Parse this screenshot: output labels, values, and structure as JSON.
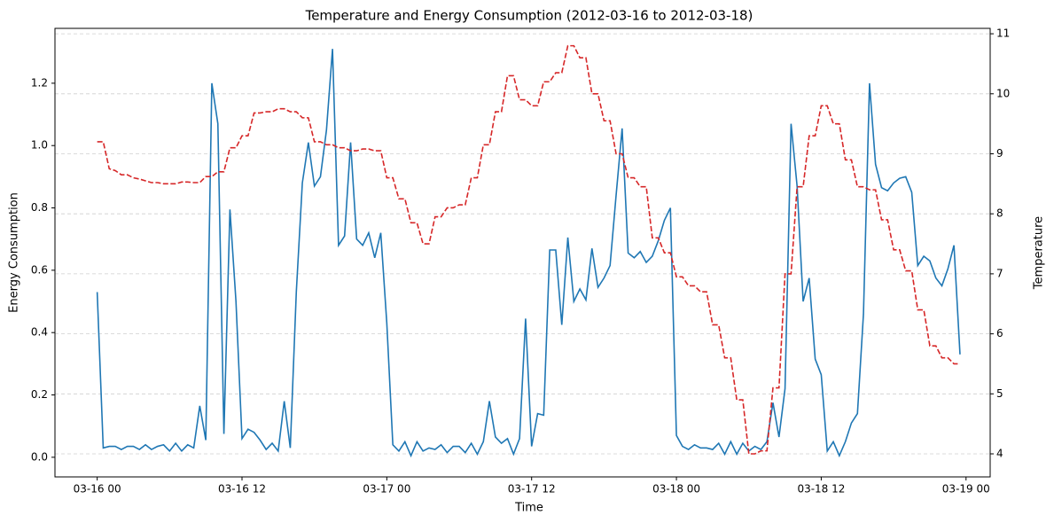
{
  "chart_data": {
    "type": "line",
    "title": "Temperature and Energy Consumption (2012-03-16 to 2012-03-18)",
    "xlabel": "Time",
    "ylabel": "Energy Consumption",
    "y2label": "Temperature",
    "x": [
      0,
      0.5,
      1,
      1.5,
      2,
      2.5,
      3,
      3.5,
      4,
      4.5,
      5,
      5.5,
      6,
      6.5,
      7,
      7.5,
      8,
      8.5,
      9,
      9.5,
      10,
      10.5,
      11,
      11.5,
      12,
      12.5,
      13,
      13.5,
      14,
      14.5,
      15,
      15.5,
      16,
      16.5,
      17,
      17.5,
      18,
      18.5,
      19,
      19.5,
      20,
      20.5,
      21,
      21.5,
      22,
      22.5,
      23,
      23.5,
      24,
      24.5,
      25,
      25.5,
      26,
      26.5,
      27,
      27.5,
      28,
      28.5,
      29,
      29.5,
      30,
      30.5,
      31,
      31.5,
      32,
      32.5,
      33,
      33.5,
      34,
      34.5,
      35,
      35.5,
      36,
      36.5,
      37,
      37.5,
      38,
      38.5,
      39,
      39.5,
      40,
      40.5,
      41,
      41.5,
      42,
      42.5,
      43,
      43.5,
      44,
      44.5,
      45,
      45.5,
      46,
      46.5,
      47,
      47.5,
      48,
      48.5,
      49,
      49.5,
      50,
      50.5,
      51,
      51.5,
      52,
      52.5,
      53,
      53.5,
      54,
      54.5,
      55,
      55.5,
      56,
      56.5,
      57,
      57.5,
      58,
      58.5,
      59,
      59.5,
      60,
      60.5,
      61,
      61.5,
      62,
      62.5,
      63,
      63.5,
      64,
      64.5,
      65,
      65.5,
      66,
      66.5,
      67,
      67.5,
      68,
      68.5,
      69,
      69.5,
      70,
      70.5,
      71,
      71.5
    ],
    "series": [
      {
        "name": "Energy Consumption",
        "color": "#1f77b4",
        "axis": "y",
        "linestyle": "solid",
        "values": [
          0.53,
          0.03,
          0.035,
          0.035,
          0.025,
          0.035,
          0.035,
          0.025,
          0.04,
          0.025,
          0.035,
          0.04,
          0.02,
          0.045,
          0.02,
          0.04,
          0.03,
          0.165,
          0.055,
          1.2,
          1.07,
          0.075,
          0.795,
          0.5,
          0.06,
          0.09,
          0.08,
          0.055,
          0.025,
          0.045,
          0.02,
          0.18,
          0.03,
          0.53,
          0.88,
          1.01,
          0.87,
          0.9,
          1.05,
          1.31,
          0.68,
          0.71,
          1.01,
          0.7,
          0.68,
          0.72,
          0.64,
          0.72,
          0.43,
          0.04,
          0.02,
          0.05,
          0.005,
          0.05,
          0.02,
          0.03,
          0.025,
          0.04,
          0.015,
          0.035,
          0.035,
          0.015,
          0.045,
          0.01,
          0.05,
          0.18,
          0.065,
          0.045,
          0.06,
          0.01,
          0.06,
          0.445,
          0.035,
          0.14,
          0.135,
          0.665,
          0.665,
          0.425,
          0.705,
          0.5,
          0.54,
          0.505,
          0.67,
          0.545,
          0.575,
          0.615,
          0.84,
          1.055,
          0.655,
          0.64,
          0.66,
          0.625,
          0.645,
          0.695,
          0.76,
          0.8,
          0.07,
          0.035,
          0.025,
          0.04,
          0.03,
          0.03,
          0.025,
          0.045,
          0.01,
          0.05,
          0.01,
          0.045,
          0.02,
          0.035,
          0.025,
          0.05,
          0.175,
          0.065,
          0.22,
          1.07,
          0.87,
          0.5,
          0.575,
          0.315,
          0.265,
          0.02,
          0.05,
          0.005,
          0.05,
          0.11,
          0.14,
          0.46,
          1.2,
          0.94,
          0.865,
          0.855,
          0.88,
          0.895,
          0.9,
          0.85,
          0.615,
          0.645,
          0.63,
          0.575,
          0.55,
          0.605,
          0.68,
          0.33
        ]
      },
      {
        "name": "Temperature",
        "color": "#d62728",
        "axis": "y2",
        "linestyle": "dashed",
        "values": [
          9.2,
          9.2,
          8.75,
          8.72,
          8.65,
          8.65,
          8.6,
          8.58,
          8.55,
          8.52,
          8.52,
          8.5,
          8.5,
          8.5,
          8.53,
          8.53,
          8.52,
          8.52,
          8.62,
          8.62,
          8.7,
          8.7,
          9.1,
          9.1,
          9.3,
          9.3,
          9.68,
          9.68,
          9.7,
          9.7,
          9.75,
          9.75,
          9.7,
          9.7,
          9.6,
          9.6,
          9.2,
          9.2,
          9.15,
          9.15,
          9.1,
          9.1,
          9.05,
          9.05,
          9.08,
          9.08,
          9.05,
          9.05,
          8.6,
          8.6,
          8.25,
          8.25,
          7.85,
          7.85,
          7.5,
          7.5,
          7.95,
          7.95,
          8.1,
          8.1,
          8.15,
          8.15,
          8.6,
          8.6,
          9.15,
          9.15,
          9.7,
          9.7,
          10.3,
          10.3,
          9.9,
          9.9,
          9.8,
          9.8,
          10.2,
          10.2,
          10.35,
          10.35,
          10.8,
          10.8,
          10.6,
          10.6,
          10.0,
          10.0,
          9.55,
          9.55,
          9.0,
          9.0,
          8.6,
          8.6,
          8.45,
          8.45,
          7.6,
          7.6,
          7.35,
          7.35,
          6.95,
          6.95,
          6.8,
          6.8,
          6.7,
          6.7,
          6.15,
          6.15,
          5.6,
          5.6,
          4.9,
          4.9,
          4.0,
          4.0,
          4.05,
          4.05,
          5.1,
          5.1,
          7.0,
          7.0,
          8.45,
          8.45,
          9.3,
          9.3,
          9.8,
          9.8,
          9.5,
          9.5,
          8.9,
          8.9,
          8.45,
          8.45,
          8.4,
          8.4,
          7.9,
          7.9,
          7.4,
          7.4,
          7.05,
          7.05,
          6.4,
          6.4,
          5.8,
          5.8,
          5.6,
          5.6,
          5.5,
          5.5
        ]
      }
    ],
    "xlim": [
      -3.5,
      74
    ],
    "xticks": [
      {
        "value": 0,
        "label": "03-16 00"
      },
      {
        "value": 12,
        "label": "03-16 12"
      },
      {
        "value": 24,
        "label": "03-17 00"
      },
      {
        "value": 36,
        "label": "03-17 12"
      },
      {
        "value": 48,
        "label": "03-18 00"
      },
      {
        "value": 60,
        "label": "03-18 12"
      },
      {
        "value": 72,
        "label": "03-19 00"
      }
    ],
    "ylim": [
      -0.063,
      1.376
    ],
    "yticks": [
      {
        "value": 0,
        "label": "0.0"
      },
      {
        "value": 0.2,
        "label": "0.2"
      },
      {
        "value": 0.4,
        "label": "0.4"
      },
      {
        "value": 0.6,
        "label": "0.6"
      },
      {
        "value": 0.8,
        "label": "0.8"
      },
      {
        "value": 1,
        "label": "1.0"
      },
      {
        "value": 1.2,
        "label": "1.2"
      }
    ],
    "y2lim": [
      3.616,
      11.09
    ],
    "y2ticks": [
      4,
      5,
      6,
      7,
      8,
      9,
      10,
      11
    ],
    "grid": "y2"
  }
}
